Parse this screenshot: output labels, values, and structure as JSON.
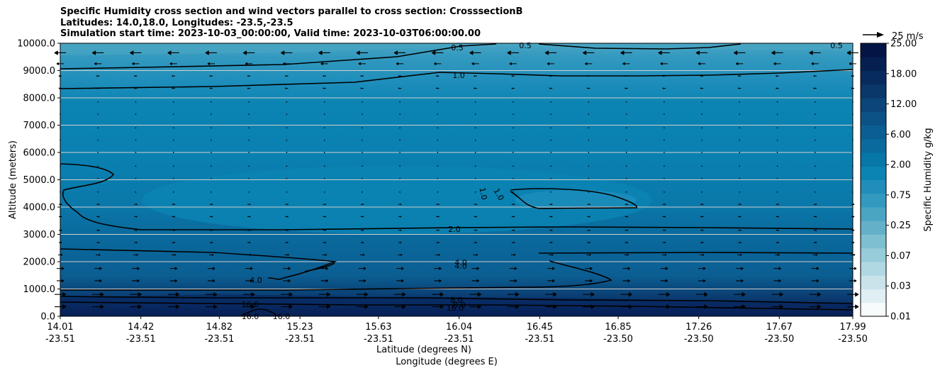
{
  "chart_data": {
    "type": "contourf",
    "title_lines": [
      "Specific Humidity cross section and wind vectors parallel to cross section: CrosssectionB",
      "Latitudes: 14.0,18.0, Longitudes: -23.5,-23.5",
      "Simulation start time: 2023-10-03_00:00:00, Valid time: 2023-10-03T06:00:00.00"
    ],
    "ylabel": "Altitude (meters)",
    "xlabel_lines": [
      "Latitude (degrees N)",
      "Longitude (degrees E)"
    ],
    "ylim": [
      0,
      10000
    ],
    "y_ticks": [
      "0.0",
      "1000.0",
      "2000.0",
      "3000.0",
      "4000.0",
      "5000.0",
      "6000.0",
      "7000.0",
      "8000.0",
      "9000.0",
      "10000.0"
    ],
    "x_ticks": [
      {
        "lat": "14.01",
        "lon": "-23.51"
      },
      {
        "lat": "14.42",
        "lon": "-23.51"
      },
      {
        "lat": "14.82",
        "lon": "-23.51"
      },
      {
        "lat": "15.23",
        "lon": "-23.51"
      },
      {
        "lat": "15.63",
        "lon": "-23.51"
      },
      {
        "lat": "16.04",
        "lon": "-23.51"
      },
      {
        "lat": "16.45",
        "lon": "-23.51"
      },
      {
        "lat": "16.85",
        "lon": "-23.50"
      },
      {
        "lat": "17.26",
        "lon": "-23.50"
      },
      {
        "lat": "17.67",
        "lon": "-23.50"
      },
      {
        "lat": "17.99",
        "lon": "-23.50"
      }
    ],
    "grid": "horizontal",
    "colorbar": {
      "label": "Specific Humidity g/kg",
      "tick_labels": [
        "0.01",
        "0.03",
        "0.07",
        "0.25",
        "0.75",
        "2.00",
        "6.00",
        "12.00",
        "18.00",
        "25.00"
      ],
      "colors": [
        "#f7fbfc",
        "#e0eff3",
        "#c8e3ea",
        "#b0d8e2",
        "#97ccd9",
        "#7ebfd1",
        "#63b1c9",
        "#4aa5c3",
        "#3399bf",
        "#1f8ebb",
        "#0b84b3",
        "#0677a7",
        "#0a6a9d",
        "#0b5e92",
        "#0c5286",
        "#0b4579",
        "#0a386b",
        "#082b5e",
        "#061f51",
        "#041444"
      ]
    },
    "quiver_key": {
      "label": "25 m/s"
    },
    "contour_labels": [
      "0.5",
      "0.5",
      "0.5",
      "1.0",
      "1.0",
      "1.0",
      "2.0",
      "4.0",
      "4.0",
      "4.0",
      "8.0",
      "8.0",
      "16.0",
      "16.0",
      "16.0",
      "16.0"
    ]
  }
}
